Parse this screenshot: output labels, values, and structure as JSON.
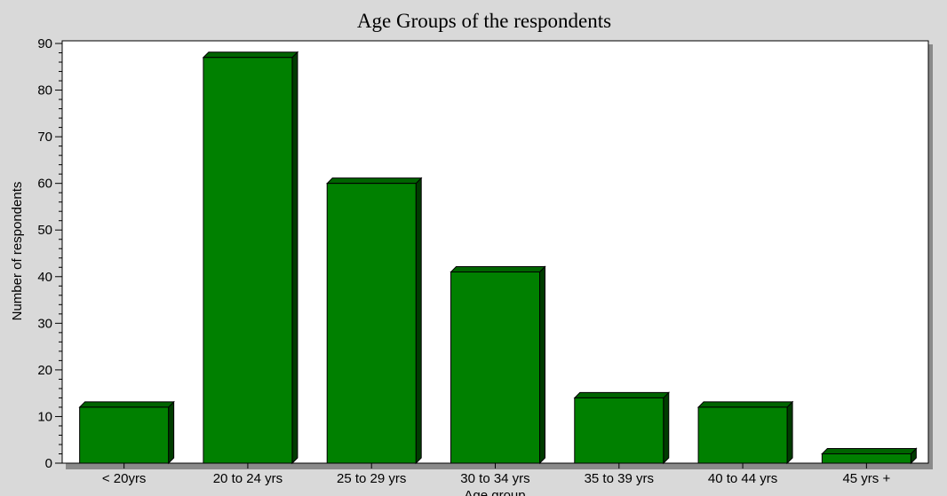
{
  "chart_data": {
    "type": "bar",
    "title": "Age Groups of the respondents",
    "xlabel": "Age group",
    "ylabel": "Number of respondents",
    "categories": [
      "< 20yrs",
      "20 to 24 yrs",
      "25 to 29 yrs",
      "30 to 34 yrs",
      "35 to 39 yrs",
      "40 to 44 yrs",
      "45 yrs +"
    ],
    "values": [
      12,
      87,
      60,
      41,
      14,
      12,
      2
    ],
    "ylim": [
      0,
      90
    ],
    "yticks": [
      0,
      10,
      20,
      30,
      40,
      50,
      60,
      70,
      80,
      90
    ],
    "grid": false,
    "colors": {
      "bar_front": "#008000",
      "bar_top": "#006400",
      "bar_side": "#003c00",
      "plot_background": "#ffffff",
      "page_background": "#d9d9d9"
    }
  }
}
